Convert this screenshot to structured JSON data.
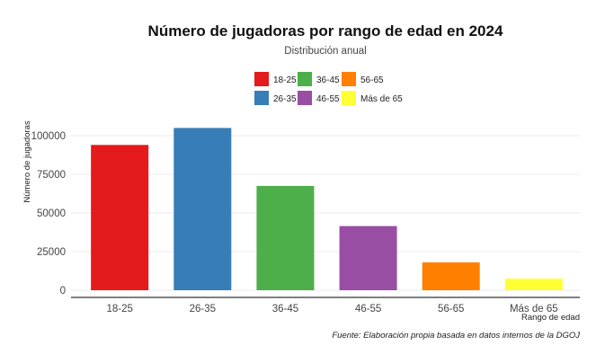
{
  "chart_data": {
    "type": "bar",
    "title": "Número de jugadoras por rango de edad en 2024",
    "subtitle": "Distribución anual",
    "xlabel": "Rango de edad",
    "ylabel": "Número de jugadoras",
    "caption": "Fuente: Elaboración propia basada en datos internos de la DGOJ",
    "categories": [
      "18-25",
      "26-35",
      "36-45",
      "46-55",
      "56-65",
      "Más de 65"
    ],
    "values": [
      94000,
      105000,
      67500,
      41500,
      18000,
      7500
    ],
    "colors": [
      "#E41A1C",
      "#377EB8",
      "#4DAF4A",
      "#984EA3",
      "#FF7F00",
      "#FFFF33"
    ],
    "ylim": [
      0,
      110000
    ],
    "yticks": [
      0,
      25000,
      50000,
      75000,
      100000
    ],
    "ytick_labels": [
      "0",
      "25000",
      "50000",
      "75000",
      "100000"
    ],
    "grid": true,
    "legend": {
      "placement": "top-center",
      "columns": 3,
      "entries": [
        "18-25",
        "36-45",
        "56-65",
        "26-35",
        "46-55",
        "Más de 65"
      ],
      "entry_colors": [
        "#E41A1C",
        "#4DAF4A",
        "#FF7F00",
        "#377EB8",
        "#984EA3",
        "#FFFF33"
      ]
    }
  }
}
